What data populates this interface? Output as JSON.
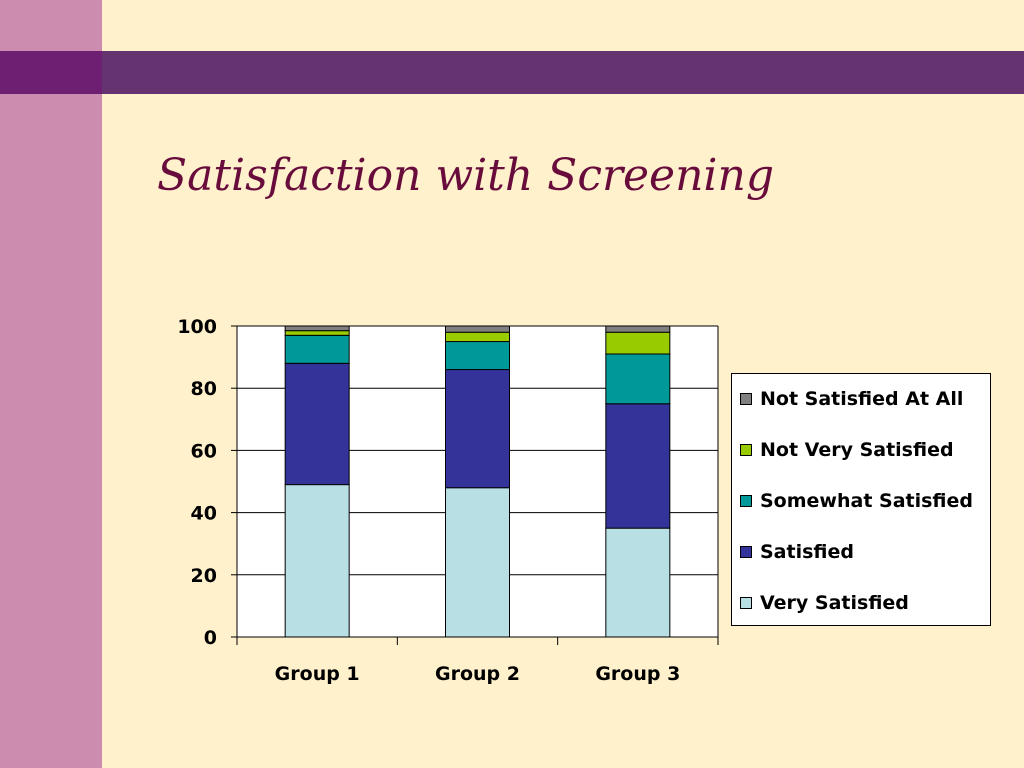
{
  "theme": {
    "background": "#fff1cc",
    "sidebar_color": "#cc8cb0",
    "band_color": "#663371",
    "band_accent": "#6e1f72",
    "title_color": "#680c3c"
  },
  "slide": {
    "title": "Satisfaction with Screening"
  },
  "chart_data": {
    "type": "bar",
    "stacked": true,
    "title": "",
    "xlabel": "",
    "ylabel": "",
    "ylim": [
      0,
      100
    ],
    "yticks": [
      0,
      20,
      40,
      60,
      80,
      100
    ],
    "grid": true,
    "legend_position": "right",
    "categories": [
      "Group 1",
      "Group 2",
      "Group 3"
    ],
    "series": [
      {
        "name": "Very Satisfied",
        "color": "#b8e0e4",
        "values": [
          49,
          48,
          35
        ]
      },
      {
        "name": "Satisfied",
        "color": "#333399",
        "values": [
          39,
          38,
          40
        ]
      },
      {
        "name": "Somewhat Satisfied",
        "color": "#009999",
        "values": [
          9,
          9,
          16
        ]
      },
      {
        "name": "Not Very Satisfied",
        "color": "#99cc00",
        "values": [
          1.5,
          3,
          7
        ]
      },
      {
        "name": "Not Satisfied At All",
        "color": "#808080",
        "values": [
          1.5,
          2,
          2
        ]
      }
    ]
  }
}
